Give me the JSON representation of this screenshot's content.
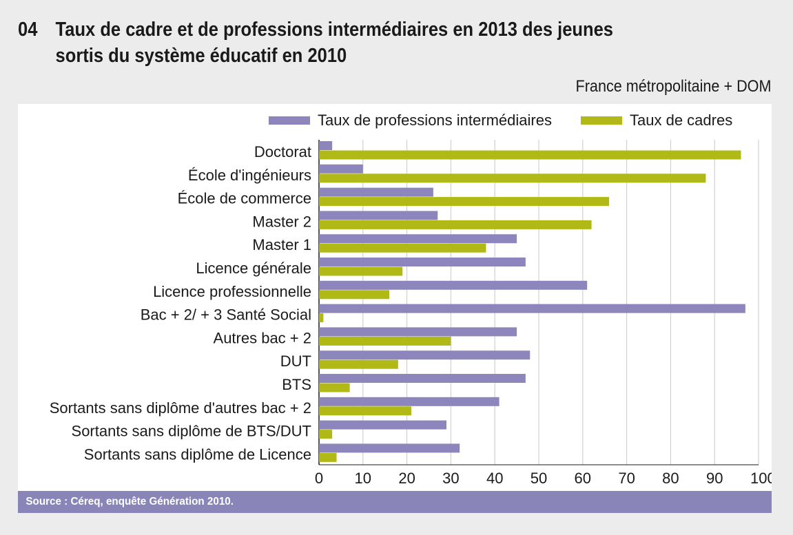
{
  "header": {
    "number": "04",
    "title_line1": "Taux de cadre et de professions intermédiaires en 2013 des jeunes",
    "title_line2": "sortis du système éducatif en 2010",
    "subtitle": "France métropolitaine + DOM"
  },
  "footer": {
    "source": "Source : Céreq, enquête Génération 2010."
  },
  "colors": {
    "intermediaires": "#8c86bd",
    "cadres": "#b1b916",
    "grid": "#c8c8c8",
    "source_bg": "#8a85b8"
  },
  "chart_data": {
    "type": "bar",
    "orientation": "horizontal",
    "categories": [
      "Doctorat",
      "École d'ingénieurs",
      "École de commerce",
      "Master 2",
      "Master 1",
      "Licence générale",
      "Licence professionnelle",
      "Bac + 2/ + 3 Santé Social",
      "Autres bac + 2",
      "DUT",
      "BTS",
      "Sortants sans diplôme d'autres bac + 2",
      "Sortants sans diplôme de BTS/DUT",
      "Sortants sans diplôme de Licence"
    ],
    "series": [
      {
        "name": "Taux de professions intermédiaires",
        "color": "#8c86bd",
        "values": [
          3,
          10,
          26,
          27,
          45,
          47,
          61,
          97,
          45,
          48,
          47,
          41,
          29,
          32
        ]
      },
      {
        "name": "Taux de cadres",
        "color": "#b1b916",
        "values": [
          96,
          88,
          66,
          62,
          38,
          19,
          16,
          1,
          30,
          18,
          7,
          21,
          3,
          4
        ]
      }
    ],
    "xlim": [
      0,
      100
    ],
    "xticks": [
      "0",
      "10",
      "20",
      "30",
      "40",
      "50",
      "60",
      "70",
      "80",
      "90",
      "100 %"
    ],
    "grid": true,
    "legend_position": "top"
  }
}
